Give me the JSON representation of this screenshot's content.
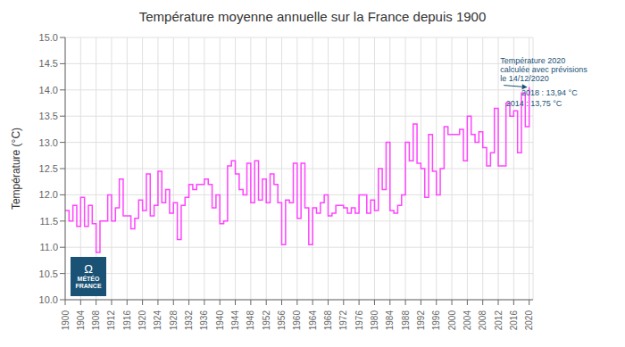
{
  "chart_data": {
    "type": "line",
    "line_style": "step",
    "title": "Température moyenne annuelle sur la France depuis 1900",
    "ylabel": "Température (°C)",
    "color": "#FF44FF",
    "grid": true,
    "xlim": [
      1900,
      2021
    ],
    "ylim": [
      10.0,
      15.0
    ],
    "xticks": [
      1900,
      1904,
      1908,
      1912,
      1916,
      1920,
      1924,
      1928,
      1932,
      1936,
      1940,
      1944,
      1948,
      1952,
      1956,
      1960,
      1964,
      1968,
      1972,
      1976,
      1980,
      1984,
      1988,
      1992,
      1996,
      2000,
      2004,
      2008,
      2012,
      2016,
      2020
    ],
    "yticks": [
      {
        "value": 10.0,
        "label": "10.0"
      },
      10.5,
      {
        "value": 11.0,
        "label": "11.0"
      },
      11.5,
      {
        "value": 12.0,
        "label": "12.0"
      },
      12.5,
      {
        "value": 13.0,
        "label": "13.0"
      },
      13.5,
      {
        "value": 14.0,
        "label": "14.0"
      },
      14.5,
      {
        "value": 15.0,
        "label": "15.0"
      }
    ],
    "x": [
      1900,
      1901,
      1902,
      1903,
      1904,
      1905,
      1906,
      1907,
      1908,
      1909,
      1910,
      1911,
      1912,
      1913,
      1914,
      1915,
      1916,
      1917,
      1918,
      1919,
      1920,
      1921,
      1922,
      1923,
      1924,
      1925,
      1926,
      1927,
      1928,
      1929,
      1930,
      1931,
      1932,
      1933,
      1934,
      1935,
      1936,
      1937,
      1938,
      1939,
      1940,
      1941,
      1942,
      1943,
      1944,
      1945,
      1946,
      1947,
      1948,
      1949,
      1950,
      1951,
      1952,
      1953,
      1954,
      1955,
      1956,
      1957,
      1958,
      1959,
      1960,
      1961,
      1962,
      1963,
      1964,
      1965,
      1966,
      1967,
      1968,
      1969,
      1970,
      1971,
      1972,
      1973,
      1974,
      1975,
      1976,
      1977,
      1978,
      1979,
      1980,
      1981,
      1982,
      1983,
      1984,
      1985,
      1986,
      1987,
      1988,
      1989,
      1990,
      1991,
      1992,
      1993,
      1994,
      1995,
      1996,
      1997,
      1998,
      1999,
      2000,
      2001,
      2002,
      2003,
      2004,
      2005,
      2006,
      2007,
      2008,
      2009,
      2010,
      2011,
      2012,
      2013,
      2014,
      2015,
      2016,
      2017,
      2018,
      2019,
      2020
    ],
    "values": [
      11.7,
      11.5,
      11.8,
      11.4,
      11.95,
      11.4,
      11.8,
      11.45,
      10.9,
      11.5,
      11.5,
      12.0,
      11.5,
      11.75,
      12.3,
      11.6,
      11.6,
      11.35,
      11.55,
      11.9,
      11.7,
      12.4,
      11.6,
      11.8,
      12.45,
      11.85,
      12.1,
      11.65,
      11.85,
      11.15,
      11.8,
      11.95,
      12.2,
      12.1,
      12.2,
      12.2,
      12.3,
      12.2,
      11.75,
      12.0,
      11.45,
      11.5,
      12.55,
      12.65,
      12.4,
      12.1,
      12.0,
      12.6,
      11.85,
      12.65,
      11.9,
      12.3,
      11.85,
      12.4,
      12.2,
      11.85,
      11.05,
      11.9,
      11.85,
      12.6,
      11.55,
      12.6,
      11.75,
      11.05,
      11.75,
      11.65,
      11.85,
      12.0,
      11.6,
      11.65,
      11.8,
      11.8,
      11.75,
      11.65,
      11.75,
      11.65,
      12.0,
      12.0,
      11.65,
      11.9,
      11.7,
      12.5,
      12.1,
      13.0,
      11.7,
      11.65,
      11.8,
      12.0,
      13.0,
      12.65,
      13.35,
      12.6,
      12.5,
      11.95,
      13.15,
      12.45,
      12.0,
      12.5,
      13.3,
      13.15,
      13.15,
      13.15,
      13.25,
      12.65,
      13.5,
      13.15,
      13.0,
      13.2,
      12.9,
      12.55,
      12.8,
      13.65,
      12.55,
      12.55,
      13.75,
      13.5,
      13.6,
      12.8,
      13.94,
      13.3,
      14.05
    ],
    "annotations": [
      {
        "text": "2014 : 13,75 °C",
        "x": 2014,
        "y": 13.75
      },
      {
        "text": "2018 : 13,94 °C",
        "x": 2018,
        "y": 13.94
      },
      {
        "text": "Température 2020\ncalculée avec prévisions\nle 14/12/2020",
        "x": 2012.5,
        "y": 14.65,
        "arrow_x": 2020,
        "arrow_y": 14.05
      },
      {
        "text": "Ω"
      },
      {
        "text": "MÉTÉO"
      },
      {
        "text": "FRANCE"
      }
    ]
  }
}
